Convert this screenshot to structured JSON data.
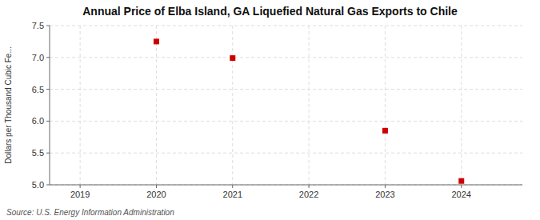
{
  "chart_data": {
    "type": "scatter",
    "title": "Annual Price of Elba Island, GA Liquefied Natural Gas Exports to Chile",
    "y_label": "Dollars per Thousand Cubic Fe...",
    "annotations": [
      "Source: U.S. Energy Information Administration"
    ],
    "x": [
      2020,
      2021,
      2023,
      2024
    ],
    "values": [
      7.25,
      6.99,
      5.85,
      5.06
    ],
    "color": "#cc0000",
    "marker": "square",
    "xlim": [
      2018.6,
      2024.8
    ],
    "ylim": [
      5.0,
      7.5
    ],
    "xticks": [
      2019,
      2020,
      2021,
      2022,
      2023,
      2024
    ],
    "yticks": [
      {
        "value": 5.0,
        "label": "5.0"
      },
      5.5,
      {
        "value": 6.0,
        "label": "6.0"
      },
      6.5,
      {
        "value": 7.0,
        "label": "7.0"
      },
      7.5
    ],
    "grid": true
  }
}
